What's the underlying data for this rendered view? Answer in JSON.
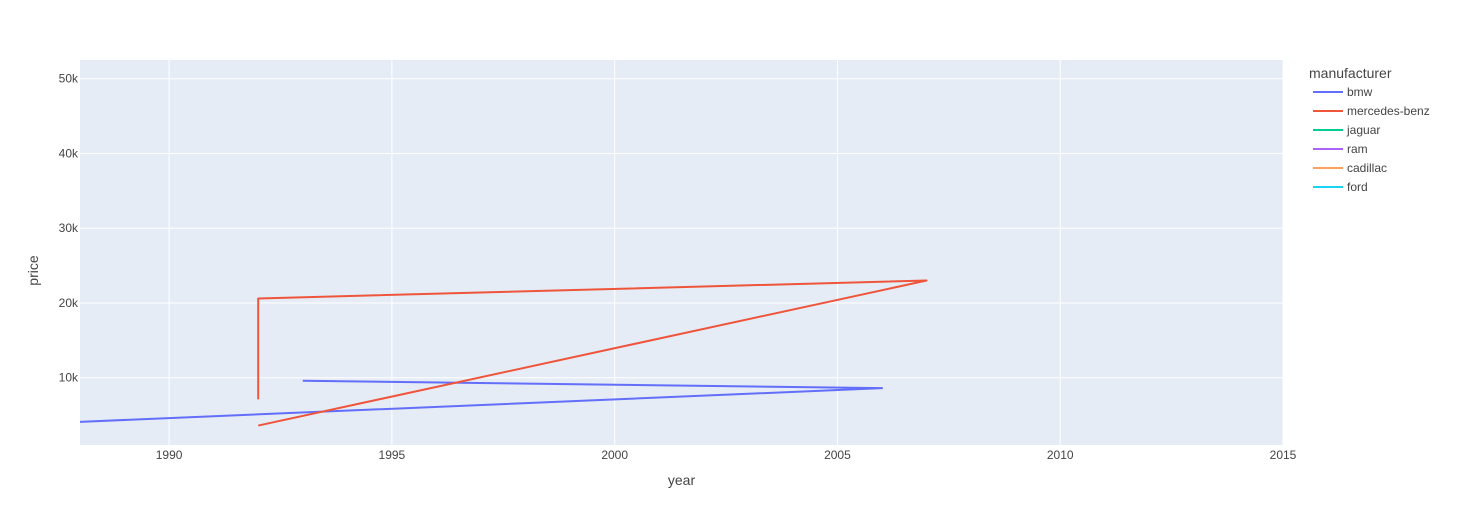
{
  "chart_data": {
    "type": "line",
    "xlabel": "year",
    "ylabel": "price",
    "xlim": [
      1988,
      2015
    ],
    "ylim": [
      1000,
      52500
    ],
    "x_ticks": [
      1990,
      1995,
      2000,
      2005,
      2010,
      2015
    ],
    "x_tick_labels": [
      "1990",
      "1995",
      "2000",
      "2005",
      "2010",
      "2015"
    ],
    "y_ticks": [
      10000,
      20000,
      30000,
      40000,
      50000
    ],
    "y_tick_labels": [
      "10k",
      "20k",
      "30k",
      "40k",
      "50k"
    ],
    "grid": true,
    "legend": {
      "title": "manufacturer",
      "placement": "right"
    },
    "series": [
      {
        "name": "bmw",
        "color": "#636efa",
        "points": [
          [
            1993,
            9600
          ],
          [
            2006,
            8600
          ],
          [
            1988,
            4100
          ]
        ]
      },
      {
        "name": "mercedes-benz",
        "color": "#ef553b",
        "points": [
          [
            1992,
            7100
          ],
          [
            1992,
            20600
          ],
          [
            2007,
            23000
          ],
          [
            1992,
            3600
          ]
        ]
      },
      {
        "name": "jaguar",
        "color": "#00cc96",
        "points": []
      },
      {
        "name": "ram",
        "color": "#ab63fa",
        "points": []
      },
      {
        "name": "cadillac",
        "color": "#ffa15a",
        "points": []
      },
      {
        "name": "ford",
        "color": "#19d3f3",
        "points": []
      }
    ]
  }
}
